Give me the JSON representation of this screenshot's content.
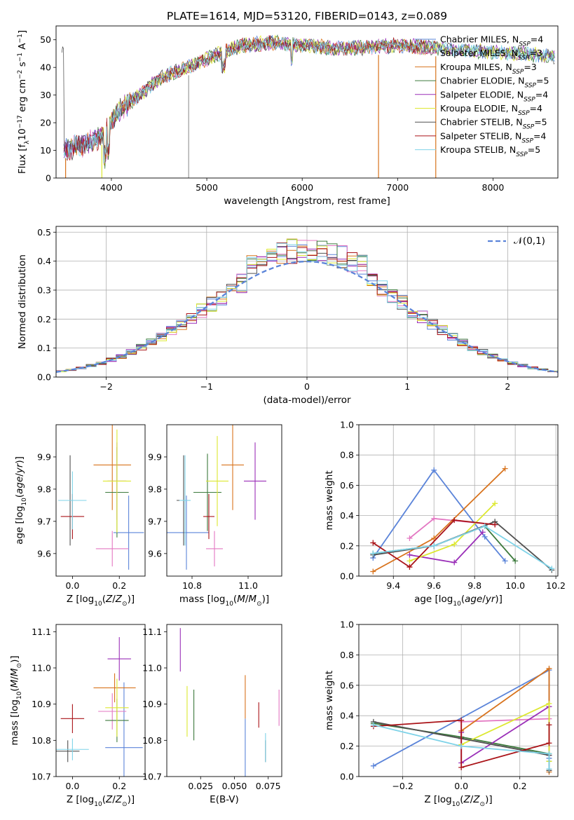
{
  "figure_title": "PLATE=1614, MJD=53120, FIBERID=0143, z=0.089",
  "colors": {
    "Chabrier MILES": "#5b84d9",
    "Salpeter MILES": "#e377c2",
    "Kroupa MILES": "#d8731d",
    "Chabrier ELODIE": "#3d7a3d",
    "Salpeter ELODIE": "#9a2fb8",
    "Kroupa ELODIE": "#dde830",
    "Chabrier STELIB": "#505050",
    "Salpeter STELIB": "#aa1318",
    "Kroupa STELIB": "#7fd3e8"
  },
  "chart_data": [
    {
      "id": "spectrum",
      "type": "line",
      "title": "PLATE=1614, MJD=53120, FIBERID=0143, z=0.089",
      "xlabel": "wavelength [Angstrom, rest frame]",
      "ylabel": "Flux [f_λ 10^-17 erg cm^-2 s^-1 A^-1]",
      "xlim": [
        3420,
        8680
      ],
      "ylim": [
        0,
        55
      ],
      "xticks": [
        4000,
        5000,
        6000,
        7000,
        8000
      ],
      "yticks": [
        0,
        10,
        20,
        30,
        40,
        50
      ],
      "grid": false,
      "legend_position": "upper-right",
      "legend": [
        "Chabrier MILES, N_SSP=4",
        "Salpeter MILES, N_SSP=3",
        "Kroupa MILES, N_SSP=3",
        "Chabrier ELODIE, N_SSP=5",
        "Salpeter ELODIE, N_SSP=4",
        "Kroupa ELODIE, N_SSP=4",
        "Chabrier STELIB, N_SSP=5",
        "Salpeter STELIB, N_SSP=4",
        "Kroupa STELIB, N_SSP=5"
      ],
      "continuum": {
        "x": [
          3500,
          3700,
          3900,
          4000,
          4100,
          4300,
          4500,
          4800,
          5000,
          5200,
          5400,
          5700,
          6000,
          6300,
          6600,
          7000,
          7400,
          7800,
          8300,
          8650
        ],
        "y": [
          10,
          12,
          15,
          21,
          25,
          30,
          36,
          40,
          43,
          46,
          48,
          49,
          48,
          47,
          47,
          48,
          47,
          46,
          45,
          44
        ]
      },
      "spikes_at": [
        3520,
        3900,
        4810,
        6800,
        7400
      ]
    },
    {
      "id": "residuals",
      "type": "line",
      "xlabel": "(data-model)/error",
      "ylabel": "Normed distribution",
      "xlim": [
        -2.5,
        2.5
      ],
      "ylim": [
        0,
        0.52
      ],
      "xticks": [
        -2,
        -1,
        0,
        1,
        2
      ],
      "yticks": [
        0,
        0.1,
        0.2,
        0.3,
        0.4,
        0.5
      ],
      "grid": true,
      "legend_position": "upper-right",
      "legend": [
        "𝒩(0,1)"
      ],
      "bin_width": 0.1
    },
    {
      "id": "age-vs-Z",
      "type": "scatter",
      "xlabel": "Z [log10(Z/Z⊙)]",
      "ylabel": "age [log10(age/yr)]",
      "xlim": [
        -0.07,
        0.31
      ],
      "ylim": [
        9.53,
        10.0
      ],
      "xticks": [
        0.0,
        0.2
      ],
      "yticks": [
        9.6,
        9.7,
        9.8,
        9.9
      ],
      "grid": false,
      "series": [
        {
          "name": "Chabrier MILES",
          "x": 0.24,
          "y": 9.665,
          "xerr": 0.065,
          "yerr": 0.115
        },
        {
          "name": "Salpeter MILES",
          "x": 0.17,
          "y": 9.615,
          "xerr": 0.07,
          "yerr": 0.055
        },
        {
          "name": "Kroupa MILES",
          "x": 0.17,
          "y": 9.875,
          "xerr": 0.08,
          "yerr": 0.14
        },
        {
          "name": "Chabrier ELODIE",
          "x": 0.19,
          "y": 9.79,
          "xerr": 0.05,
          "yerr": 0.14
        },
        {
          "name": "Salpeter ELODIE",
          "x": 0.19,
          "y": 9.825,
          "xerr": 0.04,
          "yerr": 0.12
        },
        {
          "name": "Kroupa ELODIE",
          "x": 0.19,
          "y": 9.825,
          "xerr": 0.06,
          "yerr": 0.16
        },
        {
          "name": "Chabrier STELIB",
          "x": -0.01,
          "y": 9.765,
          "xerr": 0.05,
          "yerr": 0.14
        },
        {
          "name": "Salpeter STELIB",
          "x": 0.0,
          "y": 9.715,
          "xerr": 0.05,
          "yerr": 0.07
        },
        {
          "name": "Kroupa STELIB",
          "x": 0.0,
          "y": 9.765,
          "xerr": 0.06,
          "yerr": 0.09
        }
      ]
    },
    {
      "id": "age-vs-mass",
      "type": "scatter",
      "xlabel": "mass [log10(M/M⊙)]",
      "ylabel": "",
      "xlim": [
        10.71,
        11.12
      ],
      "ylim": [
        9.53,
        10.0
      ],
      "xticks": [
        10.8,
        11.0
      ],
      "yticks": [
        9.6,
        9.7,
        9.8,
        9.9
      ],
      "grid": false,
      "series": [
        {
          "name": "Chabrier MILES",
          "x": 10.78,
          "y": 9.665,
          "xerr": 0.08,
          "yerr": 0.115
        },
        {
          "name": "Salpeter MILES",
          "x": 10.88,
          "y": 9.615,
          "xerr": 0.03,
          "yerr": 0.055
        },
        {
          "name": "Kroupa MILES",
          "x": 10.945,
          "y": 9.875,
          "xerr": 0.04,
          "yerr": 0.14
        },
        {
          "name": "Chabrier ELODIE",
          "x": 10.855,
          "y": 9.79,
          "xerr": 0.05,
          "yerr": 0.12
        },
        {
          "name": "Salpeter ELODIE",
          "x": 11.025,
          "y": 9.825,
          "xerr": 0.04,
          "yerr": 0.12
        },
        {
          "name": "Kroupa ELODIE",
          "x": 10.89,
          "y": 9.825,
          "xerr": 0.04,
          "yerr": 0.14
        },
        {
          "name": "Chabrier STELIB",
          "x": 10.77,
          "y": 9.765,
          "xerr": 0.025,
          "yerr": 0.14
        },
        {
          "name": "Salpeter STELIB",
          "x": 10.86,
          "y": 9.715,
          "xerr": 0.02,
          "yerr": 0.07
        },
        {
          "name": "Kroupa STELIB",
          "x": 10.775,
          "y": 9.765,
          "xerr": 0.02,
          "yerr": 0.14
        }
      ]
    },
    {
      "id": "massweight-vs-age",
      "type": "line",
      "xlabel": "age [log10(age/yr)]",
      "ylabel": "mass weight",
      "xlim": [
        9.23,
        10.21
      ],
      "ylim": [
        0,
        1
      ],
      "xticks": [
        9.4,
        9.6,
        9.8,
        10.0,
        10.2
      ],
      "yticks": [
        0.0,
        0.2,
        0.4,
        0.6,
        0.8,
        1.0
      ],
      "grid": true,
      "series": [
        {
          "name": "Chabrier MILES",
          "x": [
            9.3,
            9.6,
            9.85,
            9.95
          ],
          "y": [
            0.12,
            0.7,
            0.26,
            0.1
          ]
        },
        {
          "name": "Salpeter MILES",
          "x": [
            9.48,
            9.6,
            9.9
          ],
          "y": [
            0.25,
            0.38,
            0.34
          ]
        },
        {
          "name": "Kroupa MILES",
          "x": [
            9.3,
            9.6,
            9.95
          ],
          "y": [
            0.03,
            0.25,
            0.71
          ]
        },
        {
          "name": "Chabrier ELODIE",
          "x": [
            9.3,
            9.6,
            9.85,
            10.0
          ],
          "y": [
            0.15,
            0.2,
            0.33,
            0.1
          ]
        },
        {
          "name": "Salpeter ELODIE",
          "x": [
            9.48,
            9.7,
            9.84
          ],
          "y": [
            0.14,
            0.09,
            0.29
          ]
        },
        {
          "name": "Kroupa ELODIE",
          "x": [
            9.48,
            9.7,
            9.9
          ],
          "y": [
            0.1,
            0.21,
            0.48
          ]
        },
        {
          "name": "Chabrier STELIB",
          "x": [
            9.3,
            9.6,
            9.9,
            10.18
          ],
          "y": [
            0.14,
            0.2,
            0.36,
            0.04
          ]
        },
        {
          "name": "Salpeter STELIB",
          "x": [
            9.3,
            9.48,
            9.7,
            9.9
          ],
          "y": [
            0.22,
            0.06,
            0.37,
            0.34
          ]
        },
        {
          "name": "Kroupa STELIB",
          "x": [
            9.3,
            9.6,
            9.85,
            10.18
          ],
          "y": [
            0.15,
            0.2,
            0.33,
            0.05
          ]
        }
      ]
    },
    {
      "id": "mass-vs-Z",
      "type": "scatter",
      "xlabel": "Z [log10(Z/Z⊙)]",
      "ylabel": "mass [log10(M/M⊙)]",
      "xlim": [
        -0.07,
        0.31
      ],
      "ylim": [
        10.7,
        11.12
      ],
      "xticks": [
        0.0,
        0.2
      ],
      "yticks": [
        10.7,
        10.8,
        10.9,
        11.0,
        11.1
      ],
      "grid": false,
      "series": [
        {
          "name": "Chabrier MILES",
          "x": 0.22,
          "y": 10.78,
          "xerr": 0.08,
          "yerr": 0.18
        },
        {
          "name": "Salpeter MILES",
          "x": 0.17,
          "y": 10.88,
          "xerr": 0.06,
          "yerr": 0.05
        },
        {
          "name": "Kroupa MILES",
          "x": 0.18,
          "y": 10.945,
          "xerr": 0.09,
          "yerr": 0.04
        },
        {
          "name": "Chabrier ELODIE",
          "x": 0.19,
          "y": 10.855,
          "xerr": 0.05,
          "yerr": 0.06
        },
        {
          "name": "Salpeter ELODIE",
          "x": 0.2,
          "y": 11.025,
          "xerr": 0.05,
          "yerr": 0.06
        },
        {
          "name": "Kroupa ELODIE",
          "x": 0.19,
          "y": 10.89,
          "xerr": 0.05,
          "yerr": 0.08
        },
        {
          "name": "Chabrier STELIB",
          "x": -0.02,
          "y": 10.77,
          "xerr": 0.05,
          "yerr": 0.03
        },
        {
          "name": "Salpeter STELIB",
          "x": 0.0,
          "y": 10.86,
          "xerr": 0.05,
          "yerr": 0.04
        },
        {
          "name": "Kroupa STELIB",
          "x": 0.0,
          "y": 10.775,
          "xerr": 0.07,
          "yerr": 0.03
        }
      ]
    },
    {
      "id": "mass-vs-EBV",
      "type": "scatter",
      "xlabel": "E(B-V)",
      "ylabel": "",
      "xlim": [
        0.0,
        0.085
      ],
      "ylim": [
        10.7,
        11.12
      ],
      "xticks": [
        0.025,
        0.05,
        0.075
      ],
      "yticks": [
        10.7,
        10.8,
        10.9,
        11.0,
        11.1
      ],
      "grid": false,
      "series": [
        {
          "name": "Chabrier MILES",
          "x": 0.058,
          "y": 10.76,
          "yerr": 0.1
        },
        {
          "name": "Salpeter MILES",
          "x": 0.083,
          "y": 10.89,
          "yerr": 0.05
        },
        {
          "name": "Kroupa MILES",
          "x": 0.058,
          "y": 10.92,
          "yerr": 0.06
        },
        {
          "name": "Chabrier ELODIE",
          "x": 0.02,
          "y": 10.87,
          "yerr": 0.07
        },
        {
          "name": "Salpeter ELODIE",
          "x": 0.01,
          "y": 11.05,
          "yerr": 0.06
        },
        {
          "name": "Kroupa ELODIE",
          "x": 0.015,
          "y": 10.88,
          "yerr": 0.07
        },
        {
          "name": "Chabrier STELIB",
          "x": 0.073,
          "y": 10.77,
          "yerr": 0.03
        },
        {
          "name": "Salpeter STELIB",
          "x": 0.068,
          "y": 10.87,
          "yerr": 0.035
        },
        {
          "name": "Kroupa STELIB",
          "x": 0.073,
          "y": 10.78,
          "yerr": 0.04
        }
      ]
    },
    {
      "id": "massweight-vs-Z",
      "type": "line",
      "xlabel": "Z [log10(Z/Z⊙)]",
      "ylabel": "mass weight",
      "xlim": [
        -0.35,
        0.33
      ],
      "ylim": [
        0,
        1
      ],
      "xticks": [
        -0.2,
        0.0,
        0.2
      ],
      "yticks": [
        0.0,
        0.2,
        0.4,
        0.6,
        0.8,
        1.0
      ],
      "grid": true,
      "series": [
        {
          "name": "Chabrier MILES",
          "x": [
            -0.3,
            0.3,
            0.3,
            0.3
          ],
          "y": [
            0.07,
            0.7,
            0.12,
            0.1
          ]
        },
        {
          "name": "Salpeter MILES",
          "x": [
            0.0,
            0.0,
            0.3
          ],
          "y": [
            0.25,
            0.36,
            0.38
          ]
        },
        {
          "name": "Kroupa MILES",
          "x": [
            0.0,
            0.3,
            0.3
          ],
          "y": [
            0.3,
            0.71,
            0.03
          ]
        },
        {
          "name": "Chabrier ELODIE",
          "x": [
            -0.3,
            0.0,
            0.3,
            0.3
          ],
          "y": [
            0.35,
            0.26,
            0.15,
            0.1
          ]
        },
        {
          "name": "Salpeter ELODIE",
          "x": [
            0.0,
            0.0,
            0.3,
            0.3
          ],
          "y": [
            0.29,
            0.09,
            0.46,
            0.14
          ]
        },
        {
          "name": "Kroupa ELODIE",
          "x": [
            0.0,
            0.3,
            0.3
          ],
          "y": [
            0.21,
            0.48,
            0.1
          ]
        },
        {
          "name": "Chabrier STELIB",
          "x": [
            -0.3,
            0.0,
            0.3,
            0.3
          ],
          "y": [
            0.36,
            0.25,
            0.14,
            0.04
          ]
        },
        {
          "name": "Salpeter STELIB",
          "x": [
            -0.3,
            0.0,
            0.0,
            0.3,
            0.3
          ],
          "y": [
            0.33,
            0.37,
            0.06,
            0.22,
            0.34
          ]
        },
        {
          "name": "Kroupa STELIB",
          "x": [
            -0.3,
            0.0,
            0.3,
            0.3
          ],
          "y": [
            0.34,
            0.2,
            0.15,
            0.05
          ]
        }
      ]
    }
  ]
}
